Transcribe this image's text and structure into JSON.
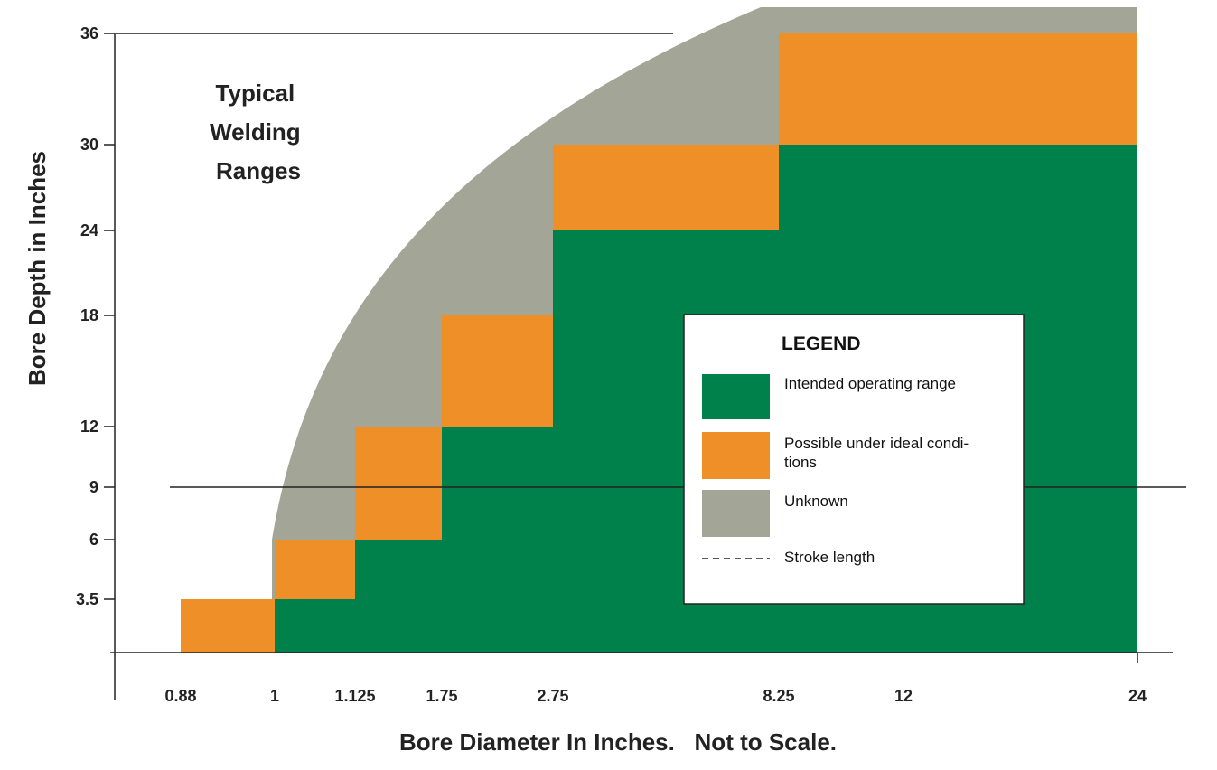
{
  "chart_data": {
    "type": "area",
    "title": "Typical Welding Ranges",
    "title_lines": [
      "Typical",
      "Welding",
      "Ranges"
    ],
    "xlabel": "Bore Diameter In Inches.   Not to Scale.",
    "ylabel": "Bore Depth in Inches",
    "x_scale": "categorical, not to scale",
    "x_ticks": [
      "0.88",
      "1",
      "1.125",
      "1.75",
      "2.75",
      "8.25",
      "12",
      "24"
    ],
    "y_ticks": [
      36,
      30,
      24,
      18,
      12,
      9,
      6,
      3.5
    ],
    "stroke_length": 9,
    "steps": [
      {
        "x_from": "0.88",
        "x_to": "1",
        "intended_depth": 0,
        "possible_depth": 3.5
      },
      {
        "x_from": "1",
        "x_to": "1.125",
        "intended_depth": 3.5,
        "possible_depth": 6
      },
      {
        "x_from": "1.125",
        "x_to": "1.75",
        "intended_depth": 6,
        "possible_depth": 12
      },
      {
        "x_from": "1.75",
        "x_to": "2.75",
        "intended_depth": 12,
        "possible_depth": 18
      },
      {
        "x_from": "2.75",
        "x_to": "8.25",
        "intended_depth": 24,
        "possible_depth": 30
      },
      {
        "x_from": "8.25",
        "x_to": "24",
        "intended_depth": 30,
        "possible_depth": 36
      }
    ],
    "legend": {
      "title": "LEGEND",
      "placement": "center-right",
      "items": [
        {
          "label": "Intended operating range",
          "color": "#00804a",
          "kind": "swatch"
        },
        {
          "label_lines": [
            "Possible under ideal condi-",
            "tions"
          ],
          "color": "#ef8f27",
          "kind": "swatch"
        },
        {
          "label": "Unknown",
          "color": "#a3a696",
          "kind": "swatch"
        },
        {
          "label": "Stroke length",
          "color": "#222222",
          "kind": "dashed-line"
        }
      ]
    }
  }
}
